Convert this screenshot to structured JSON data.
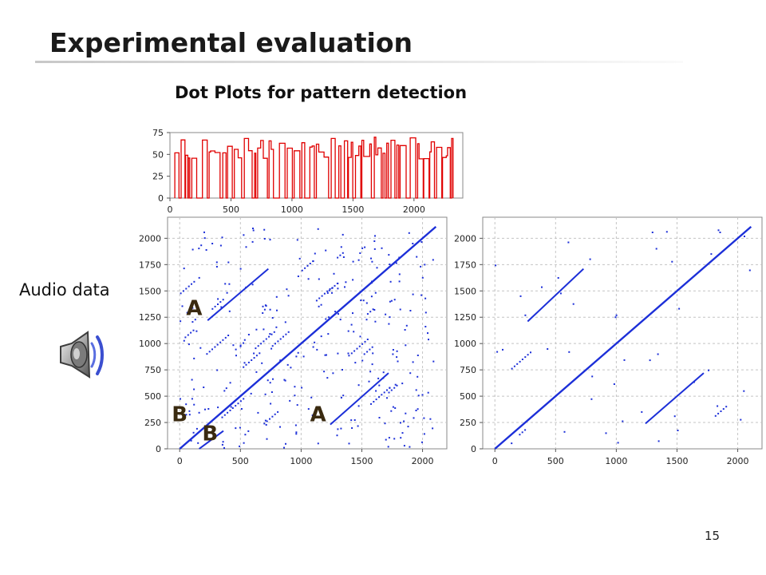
{
  "slide": {
    "title": "Experimental evaluation",
    "subtitle": "Dot Plots for pattern detection",
    "audio_label": "Audio data",
    "page_number": "15",
    "icons": [
      "speaker-icon"
    ]
  },
  "colors": {
    "line_red": "#e00000",
    "dot_blue": "#1c2fd8",
    "grid": "#c4c4c4"
  },
  "chart_data": [
    {
      "type": "line",
      "title": "",
      "xlim": [
        0,
        2400
      ],
      "ylim": [
        0,
        75
      ],
      "xticks": [
        "0",
        "500",
        "1000",
        "1500",
        "2000"
      ],
      "yticks": [
        "0",
        "25",
        "50",
        "75"
      ],
      "grid": false,
      "series": [
        {
          "description": "pitch-like signal, alternating between 0 and 45-70",
          "x_range": [
            40,
            2320
          ],
          "values_range": [
            0,
            70
          ]
        }
      ]
    },
    {
      "type": "scatter",
      "title": "",
      "xlim": [
        -100,
        2200
      ],
      "ylim": [
        0,
        2200
      ],
      "xticks": [
        "0",
        "500",
        "1000",
        "1500",
        "2000"
      ],
      "yticks": [
        "0",
        "250",
        "500",
        "750",
        "1000",
        "1250",
        "1500",
        "1750",
        "2000"
      ],
      "grid": true,
      "annotations": [
        {
          "text": "A",
          "x": 120,
          "y": 1270
        },
        {
          "text": "A",
          "x": 1140,
          "y": 260
        },
        {
          "text": "B",
          "x": 0,
          "y": 260
        },
        {
          "text": "B",
          "x": 250,
          "y": 80
        }
      ],
      "segments": [
        {
          "x0": 0,
          "y0": 0,
          "x1": 2110,
          "y1": 2110
        },
        {
          "x0": 230,
          "y0": 1220,
          "x1": 730,
          "y1": 1710
        },
        {
          "x0": 1240,
          "y0": 230,
          "x1": 1720,
          "y1": 720
        },
        {
          "x0": 160,
          "y0": 0,
          "x1": 360,
          "y1": 170
        }
      ],
      "noise_points": 300
    },
    {
      "type": "scatter",
      "title": "",
      "xlim": [
        -100,
        2200
      ],
      "ylim": [
        0,
        2200
      ],
      "xticks": [
        "0",
        "500",
        "1000",
        "1500",
        "2000"
      ],
      "yticks": [
        "0",
        "250",
        "500",
        "750",
        "1000",
        "1250",
        "1500",
        "1750",
        "2000"
      ],
      "grid": true,
      "segments": [
        {
          "x0": 0,
          "y0": 0,
          "x1": 2110,
          "y1": 2110
        },
        {
          "x0": 270,
          "y0": 1210,
          "x1": 730,
          "y1": 1710
        },
        {
          "x0": 1240,
          "y0": 240,
          "x1": 1720,
          "y1": 720
        }
      ],
      "noise_points": 45
    }
  ]
}
